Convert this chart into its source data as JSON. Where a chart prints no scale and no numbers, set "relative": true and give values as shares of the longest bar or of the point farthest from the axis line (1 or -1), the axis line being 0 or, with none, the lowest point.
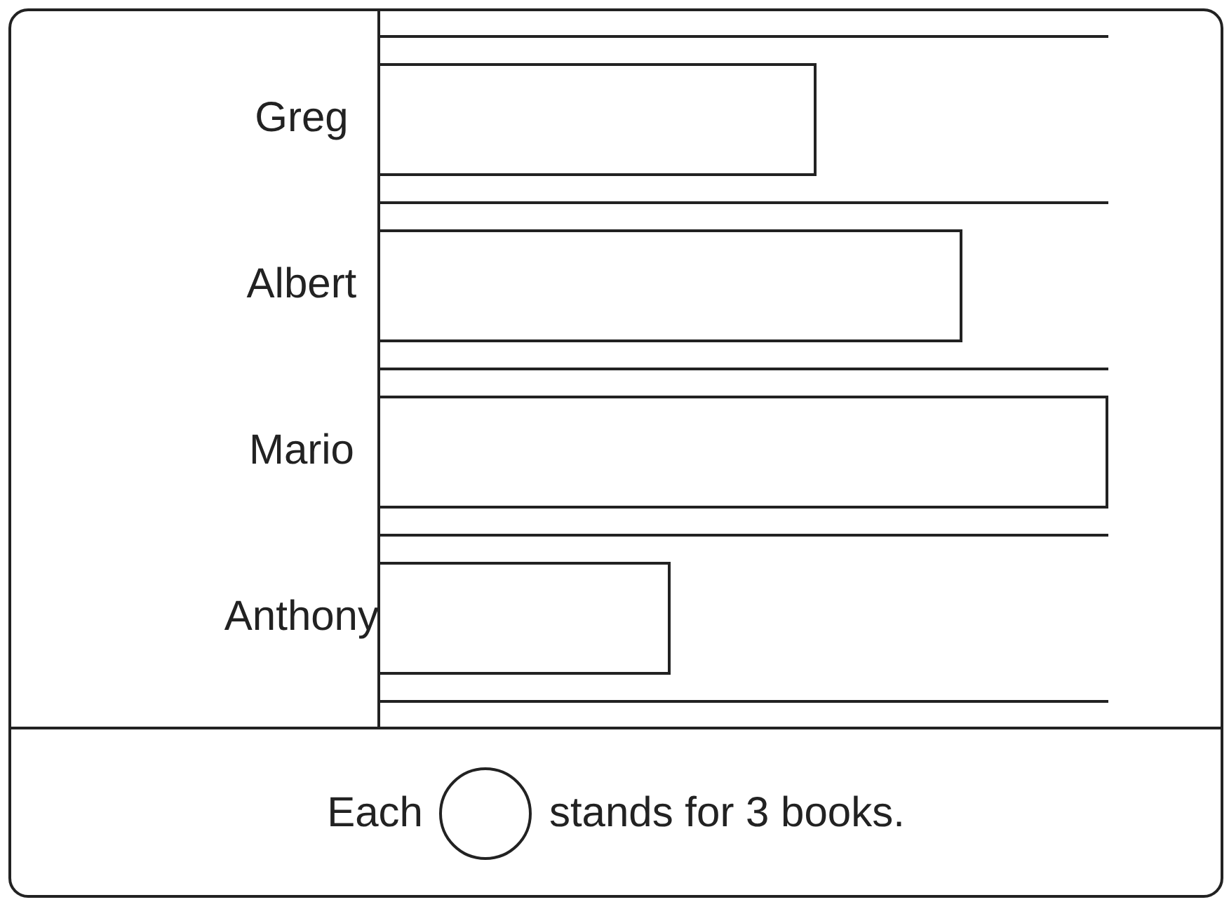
{
  "chart_data": {
    "type": "bar",
    "orientation": "horizontal",
    "relative": true,
    "categories": [
      "Greg",
      "Albert",
      "Mario",
      "Anthony"
    ],
    "values": [
      0.6,
      0.8,
      1,
      0.4
    ],
    "color": "#ffffff",
    "grid": "y",
    "legend": false,
    "annotations": [
      "Each",
      "stands for 3 books."
    ]
  }
}
